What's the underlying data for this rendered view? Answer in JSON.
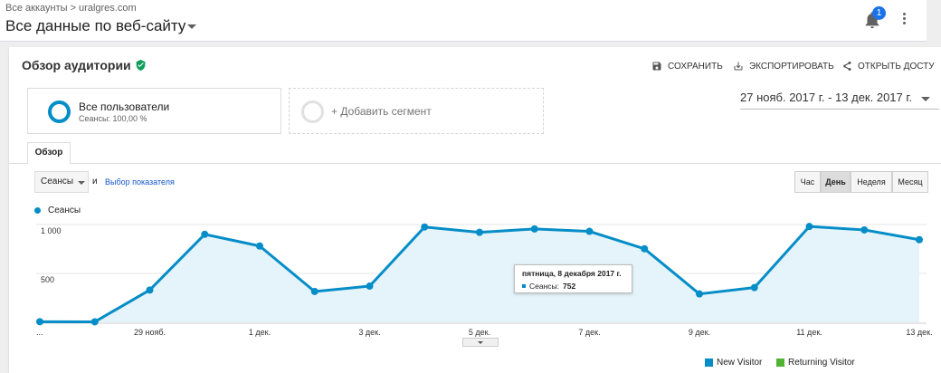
{
  "header": {
    "breadcrumb": "Все аккаунты > uralgres.com",
    "view_title": "Все данные по веб-сайту",
    "notifications_count": "1"
  },
  "report": {
    "title": "Обзор аудитории",
    "actions": {
      "save": "СОХРАНИТЬ",
      "export": "ЭКСПОРТИРОВАТЬ",
      "share": "ОТКРЫТЬ ДОСТУ"
    }
  },
  "segments": {
    "current_name": "Все пользователи",
    "current_sub": "Сеансы: 100,00 %",
    "add_label": "+ Добавить сегмент"
  },
  "date_range": "27 нояб. 2017 г. - 13 дек. 2017 г.",
  "tabs": {
    "overview": "Обзор"
  },
  "controls": {
    "metric_select": "Сеансы",
    "and": "и",
    "pick_metric": "Выбор показателя",
    "periods": [
      "Час",
      "День",
      "Неделя",
      "Месяц"
    ],
    "active_period": "День"
  },
  "chart_data": {
    "type": "area",
    "series": [
      {
        "name": "Сеансы",
        "color": "#058dc7",
        "values": [
          6,
          5,
          330,
          900,
          780,
          315,
          370,
          975,
          920,
          955,
          930,
          752,
          290,
          355,
          980,
          945,
          845
        ]
      }
    ],
    "x_tick_labels": [
      "...",
      "29 нояб.",
      "1 дек.",
      "3 дек.",
      "5 дек.",
      "7 дек.",
      "9 дек.",
      "11 дек.",
      "13 дек."
    ],
    "y_tick_labels": [
      "1 000",
      "500"
    ],
    "ylim": [
      0,
      1000
    ],
    "legend": "top-left",
    "grid": true
  },
  "tooltip": {
    "title": "пятница, 8 декабря 2017 г.",
    "label": "Сеансы:",
    "value": "752"
  },
  "visitor_legend": {
    "new": "New Visitor",
    "returning": "Returning Visitor",
    "new_color": "#058dc7",
    "returning_color": "#50b432"
  }
}
